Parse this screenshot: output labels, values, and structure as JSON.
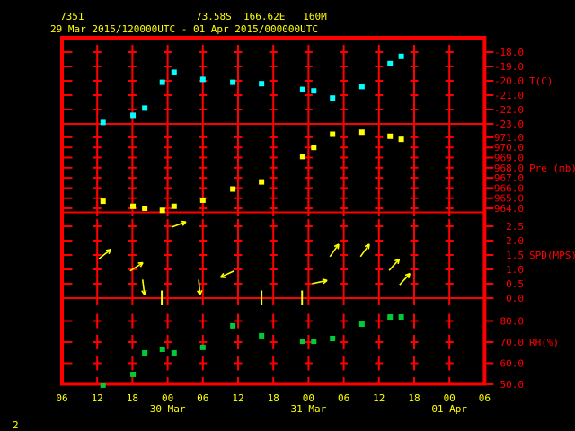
{
  "header": {
    "station_id": "7351",
    "location": "73.58S  166.62E   160M",
    "period": "29 Mar 2015/120000UTC - 01 Apr 2015/000000UTC"
  },
  "page_number": "2",
  "colors": {
    "background": "#000000",
    "grid": "#ff0000",
    "axis_text": "#ff0000",
    "header_text": "#ffff00",
    "time_text": "#ffff00",
    "temperature": "#00ffff",
    "pressure": "#ffff00",
    "wind": "#ffff00",
    "humidity": "#00cc33"
  },
  "time_axis": {
    "tick_interval_hours": 6,
    "tick_labels": [
      "06",
      "12",
      "18",
      "00",
      "06",
      "12",
      "18",
      "00",
      "06",
      "12",
      "18",
      "00",
      "06"
    ],
    "date_labels": [
      {
        "text": "30 Mar",
        "tick_index": 3
      },
      {
        "text": "31 Mar",
        "tick_index": 7
      },
      {
        "text": "01 Apr",
        "tick_index": 11
      }
    ]
  },
  "chart_data": {
    "type": "scatter",
    "title": "AWS 7351 meteogram 29 Mar 2015/120000UTC - 01 Apr 2015/000000UTC",
    "x_unit": "hours since 2015-03-29 06:00 UTC",
    "x_range": [
      0,
      72
    ],
    "panels": [
      {
        "id": "temperature",
        "unit_label": "T(C)",
        "ylim": [
          -23,
          -17
        ],
        "ticks": [
          -18,
          -19,
          -20,
          -21,
          -22,
          -23
        ],
        "unit_label_at_tick": -20,
        "points": [
          [
            7,
            -22.9
          ],
          [
            12.1,
            -22.4
          ],
          [
            14.1,
            -21.9
          ],
          [
            17.1,
            -20.1
          ],
          [
            19.1,
            -19.4
          ],
          [
            24,
            -19.9
          ],
          [
            29.1,
            -20.1
          ],
          [
            34,
            -20.2
          ],
          [
            41,
            -20.6
          ],
          [
            42.9,
            -20.7
          ],
          [
            46.1,
            -21.2
          ],
          [
            51.1,
            -20.4
          ],
          [
            55.9,
            -18.8
          ],
          [
            57.8,
            -18.3
          ]
        ]
      },
      {
        "id": "pressure",
        "unit_label": "Pre (mb)",
        "ylim": [
          963.6,
          972.3
        ],
        "ticks": [
          971,
          970,
          969,
          968,
          967,
          966,
          965,
          964
        ],
        "unit_label_at_tick": 968,
        "points": [
          [
            7,
            964.7
          ],
          [
            12.1,
            964.2
          ],
          [
            14.1,
            964.0
          ],
          [
            17.1,
            963.8
          ],
          [
            19.1,
            964.2
          ],
          [
            24,
            964.8
          ],
          [
            29.1,
            965.9
          ],
          [
            34,
            966.6
          ],
          [
            41,
            969.1
          ],
          [
            42.9,
            970.0
          ],
          [
            46.1,
            971.3
          ],
          [
            51.1,
            971.5
          ],
          [
            55.9,
            971.1
          ],
          [
            57.8,
            970.8
          ]
        ]
      },
      {
        "id": "wind_speed",
        "unit_label": "SPD(MPS)",
        "ylim": [
          0,
          3
        ],
        "ticks": [
          2.5,
          2.0,
          1.5,
          1.0,
          0.5,
          0.0
        ],
        "unit_label_at_tick": 1.5,
        "arrows": [
          [
            7.3,
            1.53,
            38
          ],
          [
            12.7,
            1.09,
            33
          ],
          [
            13.9,
            0.38,
            -83
          ],
          [
            19.9,
            2.56,
            20
          ],
          [
            23.4,
            0.38,
            -85
          ],
          [
            28.2,
            0.84,
            205
          ],
          [
            43.9,
            0.56,
            12
          ],
          [
            46.4,
            1.66,
            55
          ],
          [
            51.6,
            1.66,
            55
          ],
          [
            56.6,
            1.16,
            48
          ],
          [
            58.4,
            0.66,
            48
          ]
        ],
        "calm_marks": [
          17,
          34,
          40.9
        ]
      },
      {
        "id": "humidity",
        "unit_label": "RH(%)",
        "ylim": [
          50,
          91
        ],
        "ticks": [
          80,
          70,
          60,
          50
        ],
        "unit_label_at_tick": 70,
        "points": [
          [
            7,
            49.6
          ],
          [
            12.1,
            54.7
          ],
          [
            14.1,
            64.9
          ],
          [
            17.1,
            66.6
          ],
          [
            19.1,
            64.9
          ],
          [
            24,
            67.5
          ],
          [
            29.1,
            77.7
          ],
          [
            34,
            73.0
          ],
          [
            41,
            70.4
          ],
          [
            42.9,
            70.4
          ],
          [
            46.1,
            71.7
          ],
          [
            51.1,
            78.5
          ],
          [
            55.9,
            81.9
          ],
          [
            57.8,
            81.9
          ]
        ]
      }
    ]
  }
}
